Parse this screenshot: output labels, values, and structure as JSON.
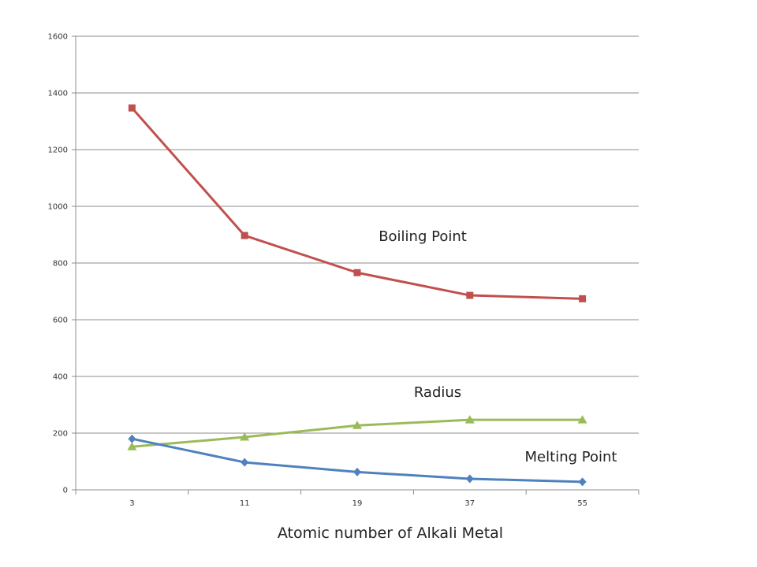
{
  "chart_data": {
    "type": "line",
    "categories": [
      "3",
      "11",
      "19",
      "37",
      "55"
    ],
    "xlabel": "Atomic number of Alkali Metal",
    "ylabel": "",
    "title": "",
    "ylim": [
      0,
      1600
    ],
    "yticks": [
      0,
      200,
      400,
      600,
      800,
      1000,
      1200,
      1400,
      1600
    ],
    "grid": true,
    "legend": "none",
    "series": [
      {
        "name": "Boiling Point",
        "color": "#c0504d",
        "marker": "square",
        "values": [
          1347,
          897,
          766,
          686,
          674
        ]
      },
      {
        "name": "Radius",
        "color": "#9bbb59",
        "marker": "triangle",
        "values": [
          152,
          186,
          227,
          247,
          247
        ]
      },
      {
        "name": "Melting Point",
        "color": "#4f81bd",
        "marker": "diamond",
        "values": [
          180,
          97,
          63,
          39,
          28
        ]
      }
    ]
  }
}
